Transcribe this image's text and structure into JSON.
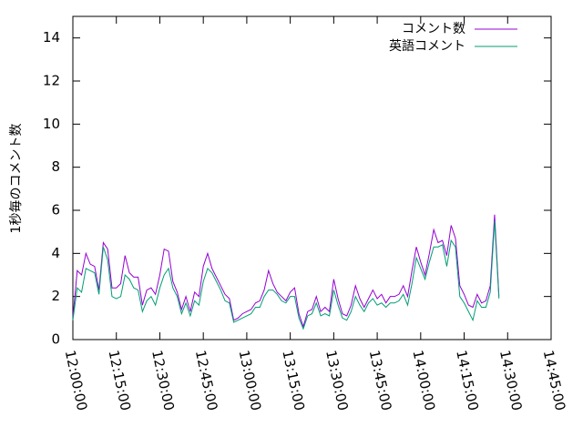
{
  "chart_data": {
    "type": "line",
    "ylabel": "1秒毎のコメント数",
    "x": [
      "12:00:00",
      "12:01:30",
      "12:03:00",
      "12:04:30",
      "12:06:00",
      "12:07:30",
      "12:09:00",
      "12:10:30",
      "12:12:00",
      "12:13:30",
      "12:15:00",
      "12:16:30",
      "12:18:00",
      "12:19:30",
      "12:21:00",
      "12:22:30",
      "12:24:00",
      "12:25:30",
      "12:27:00",
      "12:28:30",
      "12:30:00",
      "12:31:30",
      "12:33:00",
      "12:34:30",
      "12:36:00",
      "12:37:30",
      "12:39:00",
      "12:40:30",
      "12:42:00",
      "12:43:30",
      "12:45:00",
      "12:46:30",
      "12:48:00",
      "12:49:30",
      "12:51:00",
      "12:52:30",
      "12:54:00",
      "12:55:30",
      "12:57:00",
      "12:58:30",
      "13:00:00",
      "13:01:30",
      "13:03:00",
      "13:04:30",
      "13:06:00",
      "13:07:30",
      "13:09:00",
      "13:10:30",
      "13:12:00",
      "13:13:30",
      "13:15:00",
      "13:16:30",
      "13:18:00",
      "13:19:30",
      "13:21:00",
      "13:22:30",
      "13:24:00",
      "13:25:30",
      "13:27:00",
      "13:28:30",
      "13:30:00",
      "13:31:30",
      "13:33:00",
      "13:34:30",
      "13:36:00",
      "13:37:30",
      "13:39:00",
      "13:40:30",
      "13:42:00",
      "13:43:30",
      "13:45:00",
      "13:46:30",
      "13:48:00",
      "13:49:30",
      "13:51:00",
      "13:52:30",
      "13:54:00",
      "13:55:30",
      "13:57:00",
      "13:58:30",
      "14:00:00",
      "14:01:30",
      "14:03:00",
      "14:04:30",
      "14:06:00",
      "14:07:30",
      "14:09:00",
      "14:10:30",
      "14:12:00",
      "14:13:30",
      "14:15:00",
      "14:16:30",
      "14:18:00",
      "14:19:30",
      "14:21:00",
      "14:22:30",
      "14:24:00",
      "14:25:30",
      "14:27:00"
    ],
    "series": [
      {
        "name": "コメント数",
        "color": "#9400d3",
        "values": [
          1.0,
          3.2,
          3.0,
          4.0,
          3.5,
          3.4,
          2.3,
          4.5,
          4.2,
          2.4,
          2.4,
          2.6,
          3.9,
          3.1,
          2.9,
          2.9,
          1.6,
          2.3,
          2.4,
          2.1,
          3.0,
          4.2,
          4.1,
          2.7,
          2.2,
          1.4,
          2.0,
          1.3,
          2.2,
          2.0,
          3.4,
          4.0,
          3.3,
          2.9,
          2.5,
          2.1,
          1.9,
          0.9,
          1.0,
          1.2,
          1.3,
          1.4,
          1.7,
          1.8,
          2.3,
          3.2,
          2.6,
          2.2,
          2.0,
          1.8,
          2.2,
          2.4,
          1.2,
          0.6,
          1.3,
          1.4,
          2.0,
          1.3,
          1.5,
          1.3,
          2.8,
          1.9,
          1.2,
          1.1,
          1.6,
          2.5,
          1.9,
          1.5,
          1.9,
          2.3,
          1.9,
          2.1,
          1.7,
          2.0,
          2.0,
          2.1,
          2.5,
          2.0,
          3.2,
          4.3,
          3.6,
          3.0,
          4.0,
          5.1,
          4.5,
          4.6,
          3.9,
          5.3,
          4.7,
          2.5,
          2.1,
          1.6,
          1.5,
          2.1,
          1.7,
          1.8,
          2.5,
          5.8,
          2.0
        ]
      },
      {
        "name": "英語コメント",
        "color": "#009e73",
        "values": [
          0.9,
          2.4,
          2.2,
          3.3,
          3.2,
          3.1,
          2.1,
          4.3,
          3.7,
          2.0,
          1.9,
          2.0,
          3.0,
          2.8,
          2.4,
          2.3,
          1.3,
          1.8,
          2.0,
          1.6,
          2.4,
          3.0,
          3.3,
          2.4,
          2.0,
          1.2,
          1.7,
          1.1,
          1.8,
          1.6,
          2.7,
          3.3,
          3.1,
          2.7,
          2.3,
          1.8,
          1.7,
          0.8,
          0.9,
          1.0,
          1.1,
          1.2,
          1.5,
          1.5,
          2.0,
          2.3,
          2.3,
          2.1,
          1.8,
          1.7,
          2.0,
          2.0,
          1.0,
          0.5,
          1.1,
          1.2,
          1.7,
          1.1,
          1.2,
          1.1,
          2.3,
          1.6,
          1.0,
          0.9,
          1.3,
          2.0,
          1.6,
          1.3,
          1.7,
          1.9,
          1.6,
          1.7,
          1.5,
          1.7,
          1.7,
          1.8,
          2.1,
          1.6,
          2.6,
          3.8,
          3.3,
          2.8,
          3.6,
          4.3,
          4.3,
          4.4,
          3.4,
          4.6,
          4.3,
          2.0,
          1.7,
          1.3,
          0.9,
          1.8,
          1.5,
          1.5,
          2.2,
          5.5,
          1.9
        ]
      }
    ],
    "xlim": [
      "12:00:00",
      "14:45:00"
    ],
    "xticks": [
      "12:00:00",
      "12:15:00",
      "12:30:00",
      "12:45:00",
      "13:00:00",
      "13:15:00",
      "13:30:00",
      "13:45:00",
      "14:00:00",
      "14:15:00",
      "14:30:00",
      "14:45:00"
    ],
    "ylim": [
      0,
      15
    ],
    "yticks": [
      0,
      2,
      4,
      6,
      8,
      10,
      12,
      14
    ],
    "legend": "top-right"
  }
}
